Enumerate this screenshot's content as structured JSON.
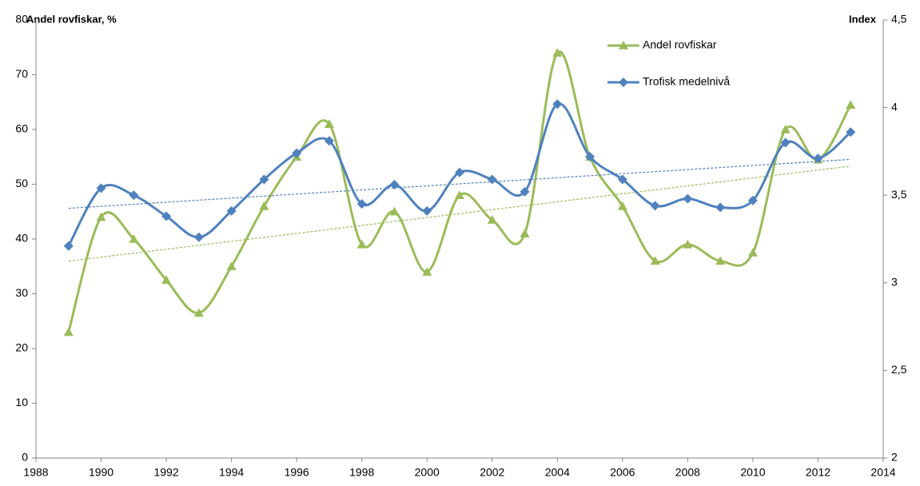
{
  "chart_data": {
    "type": "line",
    "y_label": "Andel rovfiskar, %",
    "y2_label": "Index",
    "x": [
      1989,
      1990,
      1991,
      1992,
      1993,
      1994,
      1995,
      1996,
      1997,
      1998,
      1999,
      2000,
      2001,
      2002,
      2003,
      2004,
      2005,
      2006,
      2007,
      2008,
      2009,
      2010,
      2011,
      2012,
      2013
    ],
    "series": [
      {
        "name": "Andel rovfiskar",
        "color": "#9bbb59",
        "marker": "triangle",
        "values": [
          23,
          44,
          40,
          32.5,
          26.5,
          35,
          46,
          55,
          61,
          39,
          45,
          34,
          48,
          43.5,
          41,
          74,
          55,
          46,
          36,
          39,
          36,
          37.5,
          60,
          54.5,
          64.5
        ]
      },
      {
        "name": "Trofisk medelnivå",
        "color": "#4f81bd",
        "marker": "diamond",
        "axis": "y2",
        "values": [
          3.21,
          3.54,
          3.5,
          3.38,
          3.26,
          3.41,
          3.59,
          3.74,
          3.81,
          3.45,
          3.56,
          3.41,
          3.63,
          3.59,
          3.52,
          4.02,
          3.72,
          3.59,
          3.44,
          3.48,
          3.43,
          3.47,
          3.8,
          3.71,
          3.86
        ]
      }
    ],
    "trendline": true,
    "smooth": true,
    "xlim": [
      1988,
      2014
    ],
    "xticks": [
      1988,
      1990,
      1992,
      1994,
      1996,
      1998,
      2000,
      2002,
      2004,
      2006,
      2008,
      2010,
      2012,
      2014
    ],
    "ylim": [
      0,
      80
    ],
    "yticks": [
      0,
      10,
      20,
      30,
      40,
      50,
      60,
      70,
      80
    ],
    "y2lim": [
      2,
      4.5
    ],
    "y2ticks": [
      2,
      {
        "value": 2.5,
        "label": "2,5"
      },
      3,
      {
        "value": 3.5,
        "label": "3,5"
      },
      4,
      {
        "value": 4.5,
        "label": "4,5"
      }
    ],
    "legend": "top-right"
  }
}
